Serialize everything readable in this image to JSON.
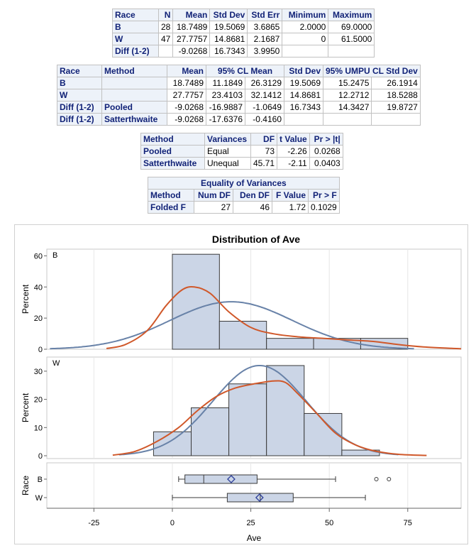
{
  "stats_table": {
    "headers": [
      "Race",
      "N",
      "Mean",
      "Std Dev",
      "Std Err",
      "Minimum",
      "Maximum"
    ],
    "rows": [
      [
        "B",
        "28",
        "18.7489",
        "19.5069",
        "3.6865",
        "2.0000",
        "69.0000"
      ],
      [
        "W",
        "47",
        "27.7757",
        "14.8681",
        "2.1687",
        "0",
        "61.5000"
      ],
      [
        "Diff (1-2)",
        "",
        "-9.0268",
        "16.7343",
        "3.9950",
        "",
        ""
      ]
    ]
  },
  "ci_table": {
    "headers": [
      "Race",
      "Method",
      "Mean",
      "95% CL Mean",
      "Std Dev",
      "95% UMPU CL Std Dev"
    ],
    "rows": [
      [
        "B",
        "",
        "18.7489",
        "11.1849",
        "26.3129",
        "19.5069",
        "15.2475",
        "26.1914"
      ],
      [
        "W",
        "",
        "27.7757",
        "23.4103",
        "32.1412",
        "14.8681",
        "12.2712",
        "18.5288"
      ],
      [
        "Diff (1-2)",
        "Pooled",
        "-9.0268",
        "-16.9887",
        "-1.0649",
        "16.7343",
        "14.3427",
        "19.8727"
      ],
      [
        "Diff (1-2)",
        "Satterthwaite",
        "-9.0268",
        "-17.6376",
        "-0.4160",
        "",
        "",
        ""
      ]
    ]
  },
  "ttest_table": {
    "headers": [
      "Method",
      "Variances",
      "DF",
      "t Value",
      "Pr > |t|"
    ],
    "rows": [
      [
        "Pooled",
        "Equal",
        "73",
        "-2.26",
        "0.0268"
      ],
      [
        "Satterthwaite",
        "Unequal",
        "45.71",
        "-2.11",
        "0.0403"
      ]
    ]
  },
  "variance_table": {
    "title": "Equality of Variances",
    "headers": [
      "Method",
      "Num DF",
      "Den DF",
      "F Value",
      "Pr > F"
    ],
    "rows": [
      [
        "Folded F",
        "27",
        "46",
        "1.72",
        "0.1029"
      ]
    ]
  },
  "chart_data": {
    "type": "histogram",
    "title": "Distribution of Ave",
    "xlabel": "Ave",
    "xlim": [
      -40,
      92
    ],
    "xticks": [
      -25,
      0,
      25,
      50,
      75
    ],
    "bin_edges": [
      -7.5,
      5,
      17.5,
      30,
      42.5,
      55,
      67.5
    ],
    "panels": [
      {
        "label": "B",
        "ylabel": "Percent",
        "ylim": [
          0,
          62
        ],
        "yticks": [
          0,
          20,
          40,
          60
        ],
        "bins": [
          {
            "x0": 0,
            "x1": 15,
            "pct": 61
          },
          {
            "x0": 15,
            "x1": 30,
            "pct": 18
          },
          {
            "x0": 30,
            "x1": 45,
            "pct": 7
          },
          {
            "x0": 45,
            "x1": 60,
            "pct": 7
          },
          {
            "x0": 60,
            "x1": 75,
            "pct": 7
          }
        ],
        "normal": {
          "mean": 18.7489,
          "sd": 19.5069,
          "peak": 30.5,
          "xrange": [
            -39,
            77
          ]
        },
        "kernel": [
          [
            -21,
            0.5
          ],
          [
            -15,
            3
          ],
          [
            -8,
            12
          ],
          [
            -2,
            28
          ],
          [
            3,
            38
          ],
          [
            7,
            40
          ],
          [
            12,
            36
          ],
          [
            18,
            24
          ],
          [
            25,
            14
          ],
          [
            32,
            10
          ],
          [
            40,
            8
          ],
          [
            48,
            7
          ],
          [
            56,
            6
          ],
          [
            64,
            5
          ],
          [
            72,
            3
          ],
          [
            80,
            1.5
          ],
          [
            92,
            0.3
          ]
        ]
      },
      {
        "label": "W",
        "ylabel": "Percent",
        "ylim": [
          0,
          33
        ],
        "yticks": [
          0,
          10,
          20,
          30
        ],
        "bins": [
          {
            "x0": -6,
            "x1": 6,
            "pct": 8.5
          },
          {
            "x0": 6,
            "x1": 18,
            "pct": 17
          },
          {
            "x0": 18,
            "x1": 30,
            "pct": 25.5
          },
          {
            "x0": 30,
            "x1": 42,
            "pct": 32
          },
          {
            "x0": 42,
            "x1": 54,
            "pct": 15
          },
          {
            "x0": 54,
            "x1": 66,
            "pct": 2
          }
        ],
        "normal": {
          "mean": 27.7757,
          "sd": 14.8681,
          "peak": 32,
          "xrange": [
            -17,
            72
          ]
        },
        "kernel": [
          [
            -19,
            0.2
          ],
          [
            -12,
            1.5
          ],
          [
            -5,
            5
          ],
          [
            2,
            10
          ],
          [
            8,
            16
          ],
          [
            14,
            21
          ],
          [
            20,
            24
          ],
          [
            26,
            25.5
          ],
          [
            32,
            26.5
          ],
          [
            36,
            26
          ],
          [
            40,
            22
          ],
          [
            46,
            15
          ],
          [
            52,
            8
          ],
          [
            58,
            4
          ],
          [
            64,
            1.8
          ],
          [
            72,
            0.5
          ],
          [
            81,
            0.1
          ]
        ]
      }
    ],
    "boxplot": {
      "ylabel": "Race",
      "groups": [
        {
          "label": "B",
          "whisker_low": 2,
          "q1": 4,
          "median": 10,
          "mean": 18.7489,
          "q3": 27,
          "whisker_high": 52,
          "outliers": [
            65,
            69
          ]
        },
        {
          "label": "W",
          "whisker_low": 0,
          "q1": 17.5,
          "median": 28,
          "mean": 27.7757,
          "q3": 38.5,
          "whisker_high": 61.5,
          "outliers": []
        }
      ]
    },
    "colors": {
      "fill": "#cbd5e6",
      "stroke": "#3a3a3a",
      "normal": "#6882a8",
      "kernel": "#d0582a",
      "frame": "#c8c8c8",
      "grid": "#e6e6e6",
      "mean_marker": "#2d3f99"
    }
  }
}
